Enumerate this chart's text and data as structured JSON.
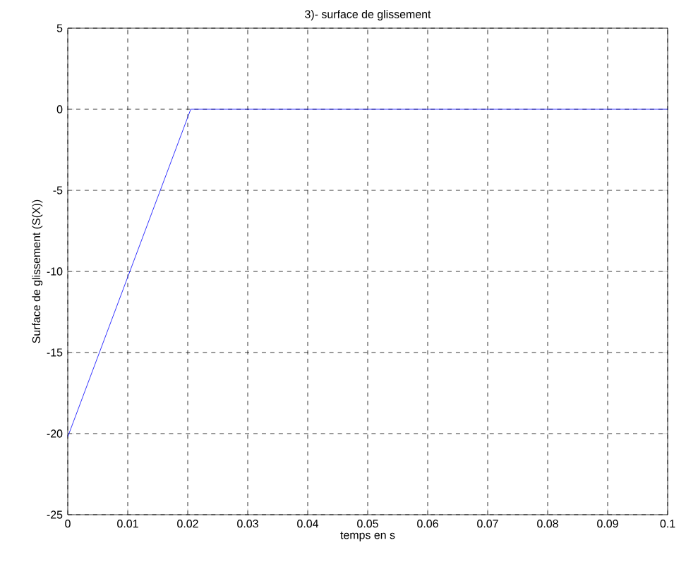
{
  "chart_data": {
    "type": "line",
    "title": "3)- surface de glissement",
    "xlabel": "temps en s",
    "ylabel": "Surface de glissement (S(X))",
    "x": [
      0,
      0.0205,
      0.1
    ],
    "series": [
      {
        "color": "#0000ff",
        "values": [
          -20.2,
          0,
          0
        ]
      }
    ],
    "xlim": [
      0,
      0.1
    ],
    "ylim": [
      -25,
      5
    ],
    "xticks": [
      0,
      0.01,
      0.02,
      0.03,
      0.04,
      0.05,
      0.06,
      0.07,
      0.08,
      0.09,
      0.1
    ],
    "yticks": [
      -25,
      -20,
      -15,
      -10,
      -5,
      0,
      5
    ],
    "grid": true,
    "marker": "none",
    "line_style": "solid"
  }
}
